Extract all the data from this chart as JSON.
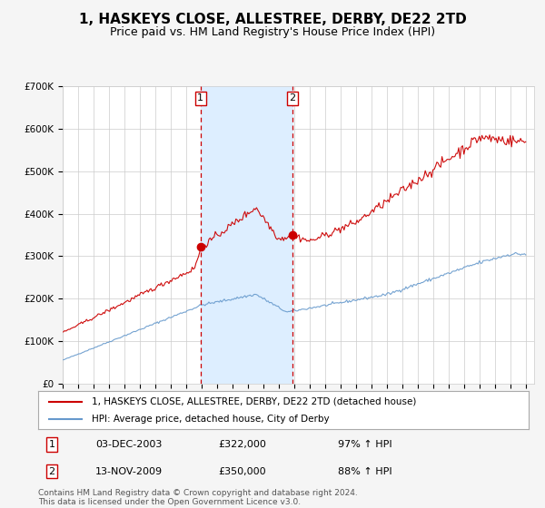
{
  "title": "1, HASKEYS CLOSE, ALLESTREE, DERBY, DE22 2TD",
  "subtitle": "Price paid vs. HM Land Registry's House Price Index (HPI)",
  "title_fontsize": 11,
  "subtitle_fontsize": 9,
  "ylim": [
    0,
    700000
  ],
  "xlim_start": 1995.0,
  "xlim_end": 2025.5,
  "yticks": [
    0,
    100000,
    200000,
    300000,
    400000,
    500000,
    600000,
    700000
  ],
  "ytick_labels": [
    "£0",
    "£100K",
    "£200K",
    "£300K",
    "£400K",
    "£500K",
    "£600K",
    "£700K"
  ],
  "grid_color": "#cccccc",
  "bg_color": "#f5f5f5",
  "plot_bg_color": "#ffffff",
  "red_line_color": "#cc0000",
  "blue_line_color": "#6699cc",
  "sale1_x": 2003.92,
  "sale1_y": 322000,
  "sale1_label": "1",
  "sale2_x": 2009.87,
  "sale2_y": 350000,
  "sale2_label": "2",
  "shade_x1": 2003.92,
  "shade_x2": 2009.87,
  "shade_color": "#ddeeff",
  "dashed_line_color": "#cc0000",
  "legend_line1": "1, HASKEYS CLOSE, ALLESTREE, DERBY, DE22 2TD (detached house)",
  "legend_line2": "HPI: Average price, detached house, City of Derby",
  "table_data": [
    [
      "1",
      "03-DEC-2003",
      "£322,000",
      "97% ↑ HPI"
    ],
    [
      "2",
      "13-NOV-2009",
      "£350,000",
      "88% ↑ HPI"
    ]
  ],
  "footer": "Contains HM Land Registry data © Crown copyright and database right 2024.\nThis data is licensed under the Open Government Licence v3.0.",
  "footer_fontsize": 6.5
}
